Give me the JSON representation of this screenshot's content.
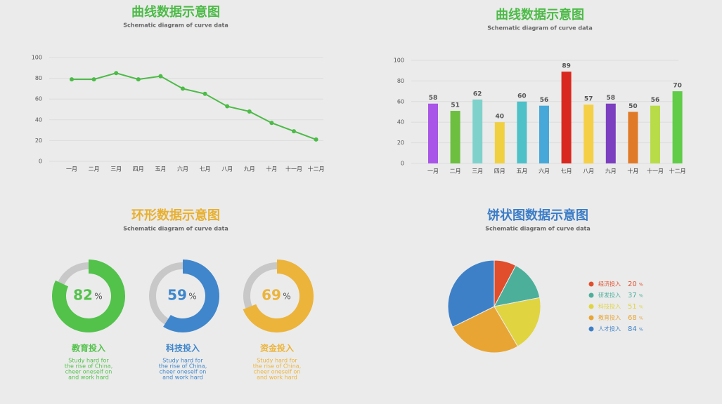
{
  "chart_data": [
    {
      "type": "line",
      "title": "曲线数据示意图",
      "subtitle": "Schematic diagram of curve data",
      "categories": [
        "一月",
        "二月",
        "三月",
        "四月",
        "五月",
        "六月",
        "七月",
        "八月",
        "九月",
        "十月",
        "十一月",
        "十二月"
      ],
      "values": [
        79,
        79,
        85,
        79,
        82,
        70,
        65,
        53,
        48,
        37,
        29,
        21
      ],
      "color": "#4cbb47",
      "ylim": [
        0,
        100
      ],
      "yticks": [
        0,
        20,
        40,
        60,
        80,
        100
      ],
      "grid": true
    },
    {
      "type": "bar",
      "title": "曲线数据示意图",
      "subtitle": "Schematic diagram of curve data",
      "categories": [
        "一月",
        "二月",
        "三月",
        "四月",
        "五月",
        "六月",
        "七月",
        "八月",
        "九月",
        "十月",
        "十一月",
        "十二月"
      ],
      "values": [
        58,
        51,
        62,
        40,
        60,
        56,
        89,
        57,
        58,
        50,
        56,
        70
      ],
      "colors": [
        "#a855e8",
        "#6cbf3f",
        "#7fd1cc",
        "#f0d040",
        "#4dc0c8",
        "#46a8d8",
        "#d8281f",
        "#f5cf45",
        "#7b3fbf",
        "#e07a28",
        "#b8dc48",
        "#60cc48"
      ],
      "ylim": [
        0,
        100
      ],
      "yticks": [
        0,
        20,
        40,
        60,
        80,
        100
      ],
      "grid": true
    },
    {
      "type": "donut",
      "title": "环形数据示意图",
      "subtitle": "Schematic diagram of curve data",
      "unit": "%",
      "categories": [
        "教育投入",
        "科技投入",
        "资金投入"
      ],
      "values": [
        82,
        59,
        69
      ],
      "colors": [
        "#52c24a",
        "#3f86cc",
        "#ecb43a"
      ],
      "descriptions": [
        [
          "Study hard for",
          "the rise of China,",
          "cheer oneself on",
          "and work hard"
        ],
        [
          "Study hard for",
          "the rise of China,",
          "cheer oneself on",
          "and work hard"
        ],
        [
          "Study hard for",
          "the rise of China,",
          "cheer oneself on",
          "and work hard"
        ]
      ]
    },
    {
      "type": "pie",
      "title": "饼状图数据示意图",
      "subtitle": "Schematic diagram of curve data",
      "unit": "%",
      "categories": [
        "经济投入",
        "研发投入",
        "科技投入",
        "教育投入",
        "人才投入"
      ],
      "values": [
        20,
        37,
        51,
        68,
        84
      ],
      "colors": [
        "#e04e2c",
        "#4caf9a",
        "#e0d441",
        "#e8a534",
        "#3d80c8"
      ],
      "legend": "right"
    }
  ]
}
